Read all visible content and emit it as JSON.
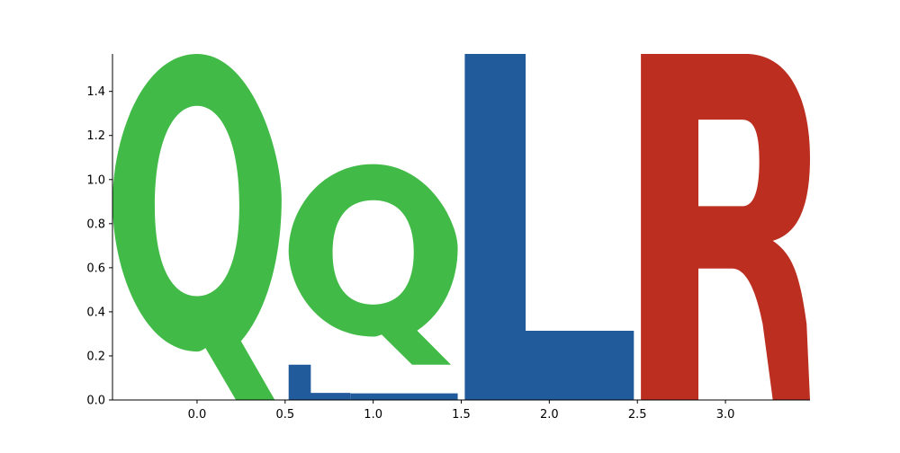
{
  "chart_data": {
    "type": "bar",
    "title": "",
    "xlabel": "",
    "ylabel": "",
    "xlim": [
      -0.48,
      3.48
    ],
    "ylim": [
      0,
      1.57
    ],
    "x_ticks": [
      0.0,
      0.5,
      1.0,
      1.5,
      2.0,
      2.5,
      3.0
    ],
    "x_tick_labels": [
      "0.0",
      "0.5",
      "1.0",
      "1.5",
      "2.0",
      "2.5",
      "3.0"
    ],
    "y_ticks": [
      0.0,
      0.2,
      0.4,
      0.6,
      0.8,
      1.0,
      1.2,
      1.4
    ],
    "y_tick_labels": [
      "0.0",
      "0.2",
      "0.4",
      "0.6",
      "0.8",
      "1.0",
      "1.2",
      "1.4"
    ],
    "grid": false,
    "spines": [
      "left",
      "bottom"
    ],
    "stacks": [
      {
        "x": 0.0,
        "segments": [
          {
            "letter": "Q",
            "bottom": 0.0,
            "height": 1.57,
            "color": "#41ba47",
            "style": "condensed"
          }
        ]
      },
      {
        "x": 1.0,
        "segments": [
          {
            "letter": "Q",
            "bottom": 0.16,
            "height": 0.91,
            "color": "#41ba47",
            "style": "normal"
          },
          {
            "letter": "L",
            "bottom": 0.0,
            "height": 0.16,
            "color": "#225b9c",
            "style": "normal"
          },
          {
            "letter": "L",
            "bottom": 0.0,
            "height": 0.03,
            "color": "#225b9c",
            "style": "flat"
          }
        ]
      },
      {
        "x": 2.0,
        "segments": [
          {
            "letter": "L",
            "bottom": 0.0,
            "height": 1.57,
            "color": "#225b9c",
            "style": "normal"
          }
        ]
      },
      {
        "x": 3.0,
        "segments": [
          {
            "letter": "R",
            "bottom": 0.0,
            "height": 1.57,
            "color": "#bb2e20",
            "style": "condensed"
          }
        ]
      }
    ]
  }
}
